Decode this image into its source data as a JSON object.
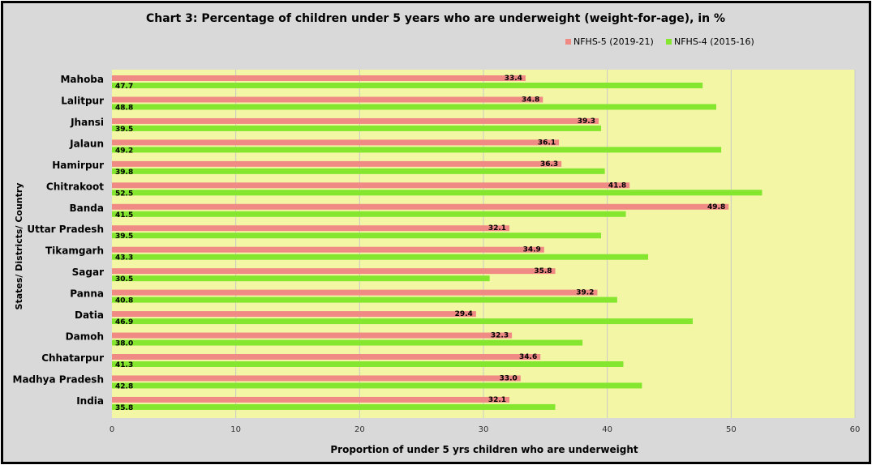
{
  "chart_data": {
    "type": "bar",
    "orientation": "horizontal",
    "title": "Chart 3: Percentage of children under 5 years who are underweight (weight-for-age),  in %",
    "xlabel": "Proportion of under 5 yrs children who are underweight",
    "ylabel": "States/ Districts/ Country",
    "xlim": [
      0,
      60
    ],
    "xticks": [
      "0",
      "10",
      "20",
      "30",
      "40",
      "50",
      "60"
    ],
    "grid": true,
    "legend_position": "top-right",
    "categories": [
      "Mahoba",
      "Lalitpur",
      "Jhansi",
      "Jalaun",
      "Hamirpur",
      "Chitrakoot",
      "Banda",
      "Uttar Pradesh",
      "Tikamgarh",
      "Sagar",
      "Panna",
      "Datia",
      "Damoh",
      "Chhatarpur",
      "Madhya Pradesh",
      "India"
    ],
    "series": [
      {
        "name": "NFHS-5 (2019-21)",
        "color": "#ef8a84",
        "values": [
          33.4,
          34.8,
          39.3,
          36.1,
          36.3,
          41.8,
          49.8,
          32.1,
          34.9,
          35.8,
          39.2,
          29.4,
          32.3,
          34.6,
          33.0,
          32.1
        ],
        "labels": [
          "33.4",
          "34.8",
          "39.3",
          "36.1",
          "36.3",
          "41.8",
          "49.8",
          "32.1",
          "34.9",
          "35.8",
          "39.2",
          "29.4",
          "32.3",
          "34.6",
          "33.0",
          "32.1"
        ]
      },
      {
        "name": "NFHS-4 (2015-16)",
        "color": "#84e62e",
        "values": [
          47.7,
          48.8,
          39.5,
          49.2,
          39.8,
          52.5,
          41.5,
          39.5,
          43.3,
          30.5,
          40.8,
          46.9,
          38.0,
          41.3,
          42.8,
          35.8
        ],
        "labels": [
          "47.7",
          "48.8",
          "39.5",
          "49.2",
          "39.8",
          "52.5",
          "41.5",
          "39.5",
          "43.3",
          "30.5",
          "40.8",
          "46.9",
          "38.0",
          "41.3",
          "42.8",
          "35.8"
        ]
      }
    ],
    "plot_background": "#f3f7a5",
    "chart_background": "#d9d9d9"
  }
}
